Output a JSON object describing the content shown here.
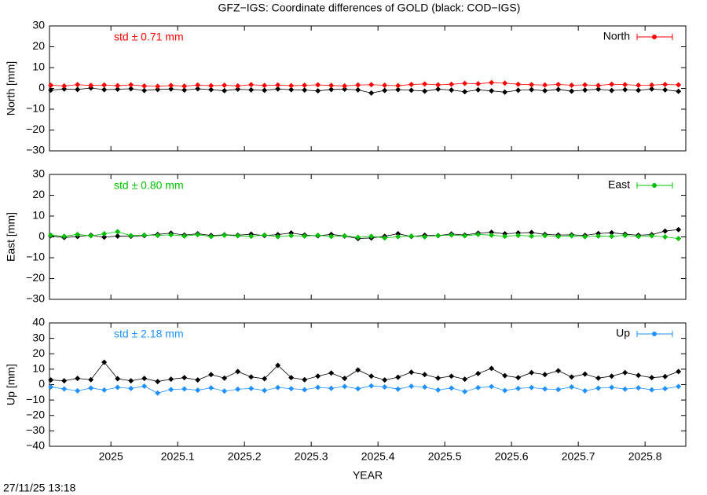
{
  "title": "GFZ−IGS: Coordinate differences of GOLD (black: COD−IGS)",
  "timestamp": "27/11/25 13:18",
  "chart_data": [
    {
      "type": "line",
      "ylabel": "North [mm]",
      "annotation": "std ± 0.71 mm",
      "legend": "top-right",
      "xlim": [
        2024.908,
        2025.861
      ],
      "xticks": [
        2025,
        2025.1,
        2025.2,
        2025.3,
        2025.4,
        2025.5,
        2025.6,
        2025.7,
        2025.8
      ],
      "ylim": [
        -30,
        30
      ],
      "yticks": [
        {
          "value": -30,
          "label": "−30"
        },
        {
          "value": -20,
          "label": "−20"
        },
        {
          "value": -10,
          "label": "−10"
        },
        0,
        10,
        20,
        30
      ],
      "x": [
        2024.91,
        2024.93,
        2024.95,
        2024.97,
        2024.99,
        2025.01,
        2025.03,
        2025.05,
        2025.07,
        2025.09,
        2025.11,
        2025.13,
        2025.15,
        2025.17,
        2025.19,
        2025.21,
        2025.23,
        2025.25,
        2025.27,
        2025.29,
        2025.31,
        2025.33,
        2025.35,
        2025.37,
        2025.39,
        2025.41,
        2025.43,
        2025.45,
        2025.47,
        2025.49,
        2025.51,
        2025.53,
        2025.55,
        2025.57,
        2025.59,
        2025.61,
        2025.63,
        2025.65,
        2025.67,
        2025.69,
        2025.71,
        2025.73,
        2025.75,
        2025.77,
        2025.79,
        2025.81,
        2025.83,
        2025.85
      ],
      "series": [
        {
          "color": "#000000",
          "values": [
            -0.8,
            -0.3,
            -0.5,
            0.2,
            -0.6,
            -0.4,
            -0.2,
            -1.0,
            -0.5,
            -0.3,
            -0.8,
            -0.2,
            -0.6,
            -1.1,
            -0.4,
            -0.7,
            -0.9,
            -0.3,
            -0.6,
            -0.8,
            -1.2,
            -0.5,
            -0.4,
            -0.7,
            -2.2,
            -1.0,
            -0.6,
            -0.9,
            -1.3,
            -0.4,
            -0.8,
            -1.6,
            -0.7,
            -1.2,
            -1.8,
            -0.9,
            -0.6,
            -1.1,
            -0.5,
            -1.3,
            -0.8,
            -0.4,
            -1.0,
            -0.6,
            -0.9,
            -0.3,
            -0.7,
            -1.4
          ]
        },
        {
          "name": "North",
          "color": "#ff0000",
          "values": [
            1.5,
            1.2,
            1.8,
            1.4,
            1.6,
            1.3,
            1.7,
            1.2,
            1.0,
            1.4,
            1.1,
            1.6,
            1.3,
            1.5,
            1.2,
            1.8,
            1.4,
            1.6,
            1.3,
            1.5,
            1.7,
            1.4,
            1.2,
            1.6,
            1.8,
            1.5,
            1.3,
            1.9,
            2.1,
            1.7,
            2.0,
            2.4,
            2.2,
            2.8,
            2.5,
            2.0,
            1.8,
            1.6,
            1.9,
            1.5,
            1.7,
            1.4,
            2.0,
            1.8,
            1.5,
            1.6,
            1.9,
            1.7
          ]
        }
      ]
    },
    {
      "type": "line",
      "ylabel": "East [mm]",
      "annotation": "std ± 0.80 mm",
      "legend": "top-right",
      "xlim": [
        2024.908,
        2025.861
      ],
      "xticks": [
        2025,
        2025.1,
        2025.2,
        2025.3,
        2025.4,
        2025.5,
        2025.6,
        2025.7,
        2025.8
      ],
      "ylim": [
        -30,
        30
      ],
      "yticks": [
        {
          "value": -30,
          "label": "−30"
        },
        {
          "value": -20,
          "label": "−20"
        },
        {
          "value": -10,
          "label": "−10"
        },
        0,
        10,
        20,
        30
      ],
      "x": [
        2024.91,
        2024.93,
        2024.95,
        2024.97,
        2024.99,
        2025.01,
        2025.03,
        2025.05,
        2025.07,
        2025.09,
        2025.11,
        2025.13,
        2025.15,
        2025.17,
        2025.19,
        2025.21,
        2025.23,
        2025.25,
        2025.27,
        2025.29,
        2025.31,
        2025.33,
        2025.35,
        2025.37,
        2025.39,
        2025.41,
        2025.43,
        2025.45,
        2025.47,
        2025.49,
        2025.51,
        2025.53,
        2025.55,
        2025.57,
        2025.59,
        2025.61,
        2025.63,
        2025.65,
        2025.67,
        2025.69,
        2025.71,
        2025.73,
        2025.75,
        2025.77,
        2025.79,
        2025.81,
        2025.83,
        2025.85
      ],
      "series": [
        {
          "color": "#000000",
          "values": [
            0.5,
            -0.3,
            0.2,
            0.8,
            -0.1,
            0.4,
            0.3,
            0.6,
            1.2,
            1.8,
            0.9,
            1.5,
            0.7,
            1.0,
            0.8,
            1.3,
            0.6,
            1.1,
            1.9,
            0.9,
            0.5,
            1.2,
            0.4,
            -0.8,
            -0.5,
            0.3,
            1.5,
            0.2,
            0.8,
            0.6,
            1.4,
            0.9,
            1.8,
            2.2,
            1.5,
            1.9,
            2.1,
            1.2,
            0.9,
            1.0,
            0.7,
            1.6,
            2.0,
            1.3,
            0.8,
            1.1,
            2.8,
            3.5
          ]
        },
        {
          "name": "East",
          "color": "#00c000",
          "values": [
            0.8,
            0.3,
            1.2,
            0.5,
            1.5,
            2.5,
            0.6,
            0.9,
            0.7,
            1.0,
            0.4,
            1.1,
            0.2,
            0.8,
            0.5,
            0.3,
            0.9,
            0.1,
            0.6,
            0.4,
            0.8,
            0.2,
            0.5,
            -0.2,
            0.3,
            -0.5,
            0.1,
            0.4,
            0.0,
            0.6,
            0.9,
            0.5,
            1.2,
            0.8,
            0.3,
            0.7,
            0.4,
            0.6,
            0.2,
            0.5,
            0.1,
            0.4,
            0.3,
            0.7,
            0.2,
            0.5,
            0.0,
            -0.8
          ]
        }
      ]
    },
    {
      "type": "line",
      "ylabel": "Up [mm]",
      "annotation": "std ± 2.18 mm",
      "legend": "top-right",
      "xlabel": "YEAR",
      "xlim": [
        2024.908,
        2025.861
      ],
      "xticks": [
        2025,
        2025.1,
        2025.2,
        2025.3,
        2025.4,
        2025.5,
        2025.6,
        2025.7,
        2025.8
      ],
      "ylim": [
        -40,
        40
      ],
      "yticks": [
        {
          "value": -40,
          "label": "−40"
        },
        {
          "value": -30,
          "label": "−30"
        },
        {
          "value": -20,
          "label": "−20"
        },
        {
          "value": -10,
          "label": "−10"
        },
        0,
        10,
        20,
        30,
        40
      ],
      "x": [
        2024.91,
        2024.93,
        2024.95,
        2024.97,
        2024.99,
        2025.01,
        2025.03,
        2025.05,
        2025.07,
        2025.09,
        2025.11,
        2025.13,
        2025.15,
        2025.17,
        2025.19,
        2025.21,
        2025.23,
        2025.25,
        2025.27,
        2025.29,
        2025.31,
        2025.33,
        2025.35,
        2025.37,
        2025.39,
        2025.41,
        2025.43,
        2025.45,
        2025.47,
        2025.49,
        2025.51,
        2025.53,
        2025.55,
        2025.57,
        2025.59,
        2025.61,
        2025.63,
        2025.65,
        2025.67,
        2025.69,
        2025.71,
        2025.73,
        2025.75,
        2025.77,
        2025.79,
        2025.81,
        2025.83,
        2025.85
      ],
      "series": [
        {
          "color": "#000000",
          "values": [
            3.0,
            2.5,
            4.0,
            3.2,
            14.5,
            3.8,
            2.5,
            4.0,
            2.0,
            3.5,
            4.5,
            3.0,
            6.5,
            4.2,
            8.5,
            5.0,
            3.8,
            12.5,
            4.5,
            3.2,
            5.5,
            7.5,
            4.0,
            9.5,
            5.5,
            3.0,
            4.8,
            8.0,
            6.5,
            4.2,
            5.5,
            3.5,
            7.2,
            10.5,
            5.8,
            4.5,
            7.8,
            6.5,
            9.0,
            5.0,
            6.8,
            4.2,
            5.5,
            7.8,
            6.0,
            4.5,
            5.2,
            8.5
          ]
        },
        {
          "name": "Up",
          "color": "#1e90ff",
          "values": [
            -1.5,
            -2.8,
            -4.0,
            -2.2,
            -3.5,
            -1.8,
            -2.5,
            -1.0,
            -5.5,
            -3.2,
            -2.8,
            -3.6,
            -2.1,
            -4.2,
            -3.0,
            -2.5,
            -3.8,
            -1.9,
            -2.6,
            -3.3,
            -1.8,
            -2.4,
            -1.2,
            -2.7,
            -0.8,
            -1.5,
            -2.9,
            -1.1,
            -1.6,
            -3.5,
            -2.2,
            -4.5,
            -2.0,
            -1.3,
            -3.8,
            -2.5,
            -1.9,
            -2.8,
            -3.2,
            -1.5,
            -4.0,
            -2.3,
            -1.8,
            -2.9,
            -2.1,
            -3.4,
            -2.6,
            -1.2
          ]
        }
      ]
    }
  ]
}
